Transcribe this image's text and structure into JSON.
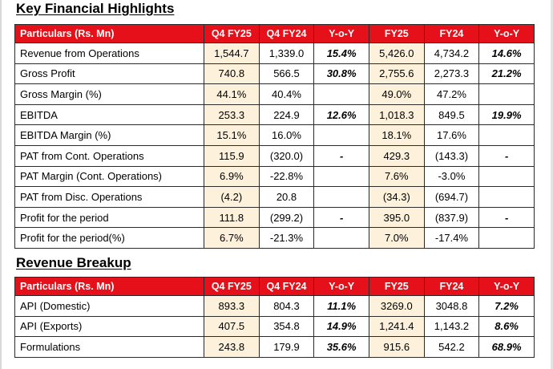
{
  "section1": {
    "title": "Key Financial Highlights",
    "headers": [
      "Particulars  (Rs. Mn)",
      "Q4 FY25",
      "Q4 FY24",
      "Y-o-Y",
      "FY25",
      "FY24",
      "Y-o-Y"
    ],
    "rows": [
      [
        "Revenue from Operations",
        "1,544.7",
        "1,339.0",
        "15.4%",
        "5,426.0",
        "4,734.2",
        "14.6%"
      ],
      [
        "Gross Profit",
        "740.8",
        "566.5",
        "30.8%",
        "2,755.6",
        "2,273.3",
        "21.2%"
      ],
      [
        "Gross Margin (%)",
        "44.1%",
        "40.4%",
        "",
        "49.0%",
        "47.2%",
        ""
      ],
      [
        "EBITDA",
        "253.3",
        "224.9",
        "12.6%",
        "1,018.3",
        "849.5",
        "19.9%"
      ],
      [
        "EBITDA Margin (%)",
        "15.1%",
        "16.0%",
        "",
        "18.1%",
        "17.6%",
        ""
      ],
      [
        "PAT from Cont. Operations",
        "115.9",
        "(320.0)",
        "-",
        "429.3",
        "(143.3)",
        "-"
      ],
      [
        "PAT Margin (Cont. Operations)",
        "6.9%",
        "-22.8%",
        "",
        "7.6%",
        "-3.0%",
        ""
      ],
      [
        "PAT from Disc. Operations",
        "(4.2)",
        "20.8",
        "",
        "(34.3)",
        "(694.7)",
        ""
      ],
      [
        "Profit for the period",
        "111.8",
        "(299.2)",
        "-",
        "395.0",
        "(837.9)",
        "-"
      ],
      [
        "Profit for the period(%)",
        "6.7%",
        "-21.3%",
        "",
        "7.0%",
        "-17.4%",
        ""
      ]
    ]
  },
  "section2": {
    "title": "Revenue Breakup",
    "headers": [
      "Particulars  (Rs. Mn)",
      "Q4 FY25",
      "Q4 FY24",
      "Y-o-Y",
      "FY25",
      "FY24",
      "Y-o-Y"
    ],
    "rows": [
      [
        "API (Domestic)",
        "893.3",
        "804.3",
        "11.1%",
        "3269.0",
        "3048.8",
        "7.2%"
      ],
      [
        "API (Exports)",
        "407.5",
        "354.8",
        "14.9%",
        "1,241.4",
        "1,143.2",
        "8.6%"
      ],
      [
        "Formulations",
        "243.8",
        "179.9",
        "35.6%",
        "915.6",
        "542.2",
        "68.9%"
      ]
    ]
  },
  "colors": {
    "header_red": "#e5101a",
    "highlight_beige": "#fdf1dc"
  }
}
